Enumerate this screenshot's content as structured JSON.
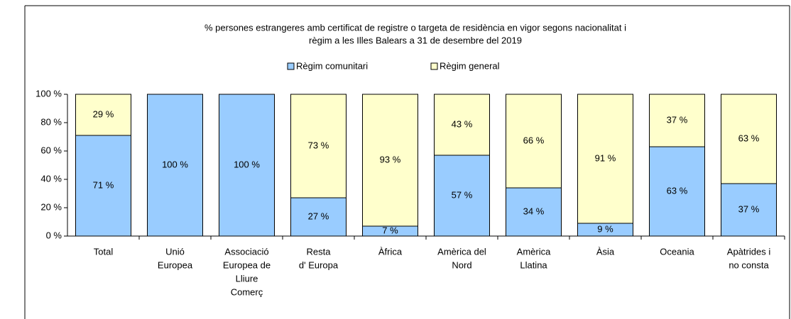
{
  "chart_data": {
    "type": "stacked_bar",
    "title": [
      "% persones estrangeres amb certificat de registre o targeta de residència en vigor segons nacionalitat i",
      "règim a les Illes Balears a 31 de desembre del 2019"
    ],
    "categories": [
      [
        "Total"
      ],
      [
        "Unió",
        "Europea"
      ],
      [
        "Associació",
        "Europea de",
        "Lliure",
        "Comerç"
      ],
      [
        "Resta",
        "d' Europa"
      ],
      [
        "Àfrica"
      ],
      [
        "Amèrica del",
        "Nord"
      ],
      [
        "Amèrica",
        "Llatina"
      ],
      [
        "Àsia"
      ],
      [
        "Oceania"
      ],
      [
        "Apàtrides i",
        "no consta"
      ]
    ],
    "series": [
      {
        "name": "Règim comunitari",
        "color": "#99ccff",
        "values": [
          71,
          100,
          100,
          27,
          7,
          57,
          34,
          9,
          63,
          37
        ],
        "value_labels": [
          "71 %",
          "100 %",
          "100 %",
          "27 %",
          "7 %",
          "57 %",
          "34 %",
          "9 %",
          "63 %",
          "37 %"
        ]
      },
      {
        "name": "Règim general",
        "color": "#ffffcc",
        "values": [
          29,
          0,
          0,
          73,
          93,
          43,
          66,
          91,
          37,
          63
        ],
        "value_labels": [
          "29 %",
          null,
          null,
          "73 %",
          "93 %",
          "43 %",
          "66 %",
          "91 %",
          "37 %",
          "63 %"
        ]
      }
    ],
    "ylim": [
      0,
      100
    ],
    "yticks": [
      {
        "value": 0,
        "label": "0 %"
      },
      {
        "value": 20,
        "label": "20 %"
      },
      {
        "value": 40,
        "label": "40 %"
      },
      {
        "value": 60,
        "label": "60 %"
      },
      {
        "value": 80,
        "label": "80 %"
      },
      {
        "value": 100,
        "label": "100 %"
      }
    ],
    "legend": "top"
  }
}
